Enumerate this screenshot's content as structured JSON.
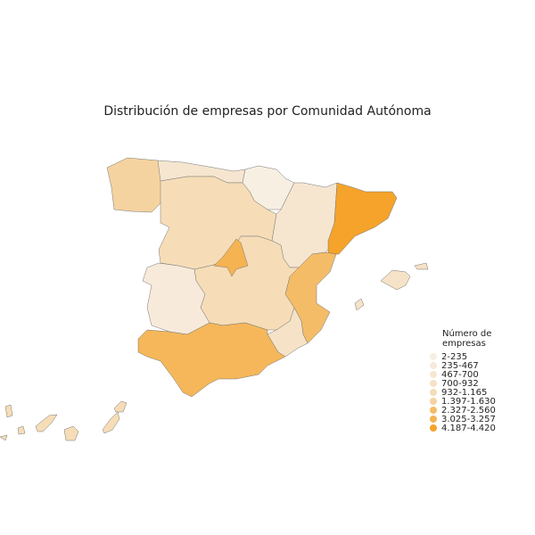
{
  "title": "Distribución de empresas por Comunidad Autónoma",
  "legend": {
    "title": "Número de empresas",
    "items": [
      {
        "label": "2-235",
        "color": "#f7efe2"
      },
      {
        "label": "235-467",
        "color": "#f7eadb"
      },
      {
        "label": "467-700",
        "color": "#f7e6d0"
      },
      {
        "label": "700-932",
        "color": "#f6e2c6"
      },
      {
        "label": "932-1.165",
        "color": "#f6ddb7"
      },
      {
        "label": "1.397-1.630",
        "color": "#f5d3a0"
      },
      {
        "label": "2.327-2.560",
        "color": "#f5bc67"
      },
      {
        "label": "3.025-3.257",
        "color": "#f5b352"
      },
      {
        "label": "4.187-4.420",
        "color": "#f5a32a"
      }
    ]
  },
  "regions": [
    {
      "name": "Galicia",
      "color": "#f5d3a0"
    },
    {
      "name": "Asturias-Cantabria",
      "color": "#f6e6d0"
    },
    {
      "name": "Pais Vasco-Navarra-La Rioja",
      "color": "#f7efe2"
    },
    {
      "name": "Castilla y Leon",
      "color": "#f6ddb7"
    },
    {
      "name": "Aragon",
      "color": "#f6e6d0"
    },
    {
      "name": "Cataluna",
      "color": "#f5a32a"
    },
    {
      "name": "Comunidad Valenciana",
      "color": "#f5bc67"
    },
    {
      "name": "Murcia",
      "color": "#f6e2c6"
    },
    {
      "name": "Castilla-La Mancha",
      "color": "#f6ddb7"
    },
    {
      "name": "Madrid",
      "color": "#f5b352"
    },
    {
      "name": "Extremadura",
      "color": "#f7eadb"
    },
    {
      "name": "Andalucia",
      "color": "#f5b75a"
    },
    {
      "name": "Baleares",
      "color": "#f6e2c6"
    },
    {
      "name": "Canarias",
      "color": "#f6ddb7"
    }
  ]
}
